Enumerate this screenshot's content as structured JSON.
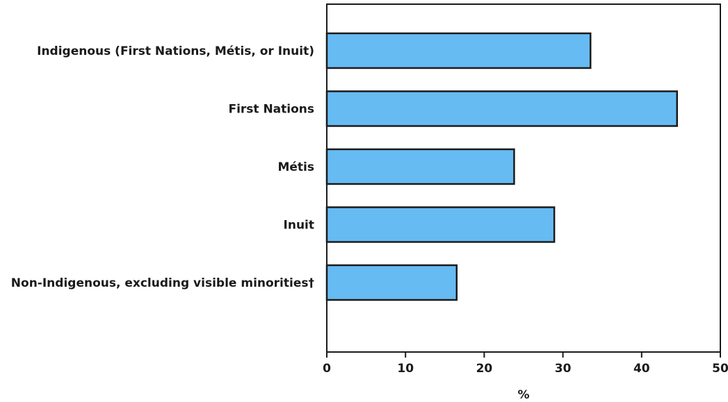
{
  "chart_data": {
    "type": "bar",
    "orientation": "horizontal",
    "title": "",
    "categories": [
      "Indigenous (First Nations, Métis, or Inuit)",
      "First Nations",
      "Métis",
      "Inuit",
      "Non-Indigenous, excluding visible minorities†"
    ],
    "values": [
      33.5,
      44.5,
      23.8,
      28.9,
      16.5
    ],
    "xlabel": "%",
    "ylabel": "",
    "xlim": [
      0,
      50
    ],
    "xticks": [
      "0",
      "10",
      "20",
      "30",
      "40",
      "50"
    ],
    "grid": false,
    "legend": "none",
    "bar_color": "#66bbf2",
    "bar_edge_color": "#1a1a1a"
  }
}
